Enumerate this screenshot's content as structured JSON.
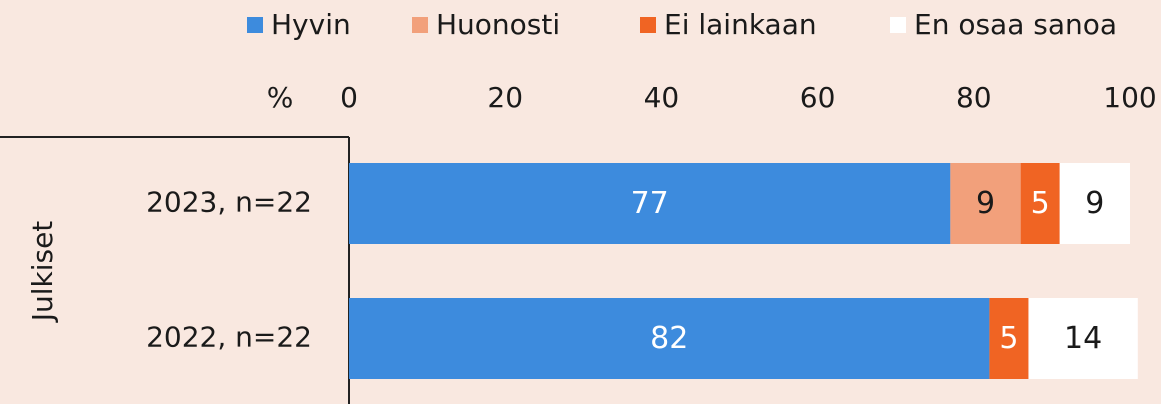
{
  "chart_data": {
    "type": "stacked_barh",
    "group_label": "Julkiset",
    "x_label": "%",
    "categories": [
      "2023, n=22",
      "2022, n=22"
    ],
    "series": [
      {
        "name": "Hyvin",
        "color": "#3d8bdd",
        "label_color": "#ffffff",
        "values": [
          77,
          82
        ]
      },
      {
        "name": "Huonosti",
        "color": "#f2a07b",
        "label_color": "#1a1a1a",
        "values": [
          9,
          null
        ]
      },
      {
        "name": "Ei lainkaan",
        "color": "#f06423",
        "label_color": "#ffffff",
        "values": [
          5,
          5
        ]
      },
      {
        "name": "En osaa sanoa",
        "color": "#ffffff",
        "label_color": "#1a1a1a",
        "values": [
          9,
          14
        ]
      }
    ],
    "xlim": [
      0,
      100
    ],
    "xticks": [
      0,
      20,
      40,
      60,
      80,
      100
    ],
    "legend": "top"
  }
}
